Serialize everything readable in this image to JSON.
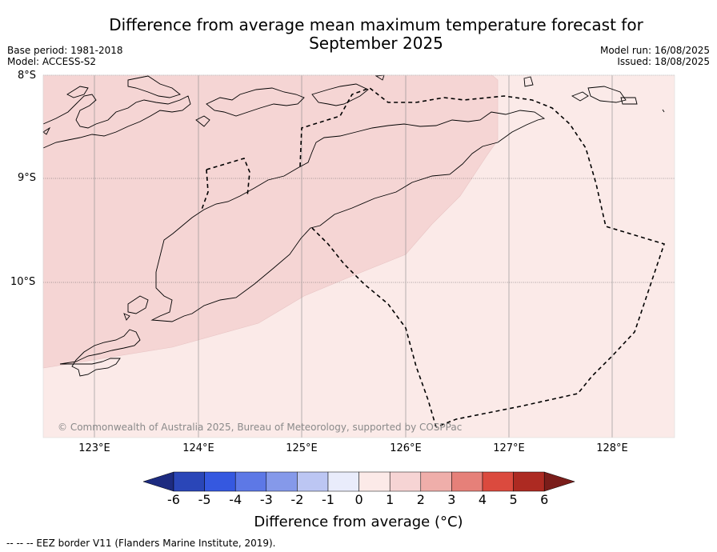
{
  "title_line1": "Difference from average mean maximum temperature forecast for",
  "title_line2": "September 2025",
  "base_period": "Base period: 1981-2018",
  "model": "Model: ACCESS-S2",
  "model_run": "Model run: 16/08/2025",
  "issued": "Issued: 18/08/2025",
  "lat_labels": [
    "8°S",
    "9°S",
    "10°S"
  ],
  "lon_labels": [
    "123°E",
    "124°E",
    "125°E",
    "126°E",
    "127°E",
    "128°E"
  ],
  "copyright": "© Commonwealth of Australia 2025, Bureau of Meteorology, supported by COSPPac",
  "colorbar": {
    "ticks": [
      "-6",
      "-5",
      "-4",
      "-3",
      "-2",
      "-1",
      "0",
      "1",
      "2",
      "3",
      "4",
      "5",
      "6"
    ],
    "colors": [
      "#1d2b80",
      "#2a46b8",
      "#3558e0",
      "#5d78e6",
      "#8599ea",
      "#bcc6f3",
      "#e9ecfb",
      "#fceae8",
      "#f6d4d4",
      "#efaeaa",
      "#e68079",
      "#db4a3e",
      "#ad2a22",
      "#7a1d1a"
    ],
    "label": "Difference from average (°C)"
  },
  "legend_note": "--  --  -- EEZ border V11 (Flanders Marine Institute, 2019).",
  "map_colors": {
    "category_1_to_2": "#f5d5d4",
    "category_0_to_1": "#fbeae8"
  }
}
